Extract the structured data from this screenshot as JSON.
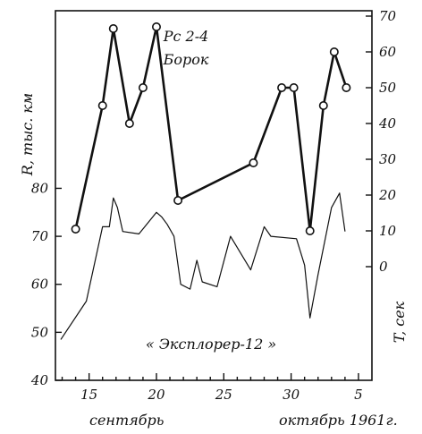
{
  "chart_data": {
    "type": "line",
    "title_lines": [
      "Рс 2-4",
      "Борок"
    ],
    "annotation": "« Эксплорер-12 »",
    "y_left_label": "R, тыс. км",
    "y_right_label": "T, сек",
    "x_caption_left": "сентябрь",
    "x_caption_right": "октябрь 1961г.",
    "x_ticks": [
      {
        "day": 15,
        "label": "15"
      },
      {
        "day": 20,
        "label": "20"
      },
      {
        "day": 25,
        "label": "25"
      },
      {
        "day": 30,
        "label": "30"
      },
      {
        "day": 35,
        "label": "5"
      }
    ],
    "x_range": [
      12.5,
      36
    ],
    "left_axis": {
      "ticks": [
        40,
        50,
        60,
        70,
        80
      ],
      "range": [
        40,
        117
      ]
    },
    "right_axis": {
      "ticks": [
        0,
        10,
        20,
        30,
        40,
        50,
        60,
        70
      ],
      "range": [
        0,
        70
      ]
    },
    "series": [
      {
        "axis": "right",
        "style": "markers",
        "points": [
          {
            "x": 14.0,
            "y": 10.5
          },
          {
            "x": 16.0,
            "y": 45.0
          },
          {
            "x": 16.8,
            "y": 66.5
          },
          {
            "x": 18.0,
            "y": 40.0
          },
          {
            "x": 19.0,
            "y": 50.0
          },
          {
            "x": 20.0,
            "y": 67.0
          },
          {
            "x": 21.6,
            "y": 18.5
          },
          {
            "x": 27.2,
            "y": 29.0
          },
          {
            "x": 29.3,
            "y": 50.0
          },
          {
            "x": 30.2,
            "y": 50.0
          },
          {
            "x": 31.4,
            "y": 10.0
          },
          {
            "x": 32.4,
            "y": 45.0
          },
          {
            "x": 33.2,
            "y": 60.0
          },
          {
            "x": 34.1,
            "y": 50.0
          }
        ]
      },
      {
        "axis": "left",
        "style": "thin",
        "points": [
          {
            "x": 12.9,
            "y": 48.5
          },
          {
            "x": 14.8,
            "y": 56.5
          },
          {
            "x": 16.0,
            "y": 72.0
          },
          {
            "x": 16.5,
            "y": 72.0
          },
          {
            "x": 16.8,
            "y": 78.0
          },
          {
            "x": 17.1,
            "y": 76.0
          },
          {
            "x": 17.5,
            "y": 71.0
          },
          {
            "x": 18.7,
            "y": 70.5
          },
          {
            "x": 20.0,
            "y": 75.0
          },
          {
            "x": 20.4,
            "y": 74.0
          },
          {
            "x": 20.8,
            "y": 72.5
          },
          {
            "x": 21.3,
            "y": 70.0
          },
          {
            "x": 21.8,
            "y": 60.0
          },
          {
            "x": 22.5,
            "y": 59.0
          },
          {
            "x": 23.0,
            "y": 65.0
          },
          {
            "x": 23.4,
            "y": 60.5
          },
          {
            "x": 24.5,
            "y": 59.5
          },
          {
            "x": 25.5,
            "y": 70.0
          },
          {
            "x": 27.0,
            "y": 63.0
          },
          {
            "x": 28.0,
            "y": 72.0
          },
          {
            "x": 28.5,
            "y": 70.0
          },
          {
            "x": 30.4,
            "y": 69.5
          },
          {
            "x": 31.0,
            "y": 64.0
          },
          {
            "x": 31.4,
            "y": 53.0
          },
          {
            "x": 32.0,
            "y": 62.0
          },
          {
            "x": 33.0,
            "y": 76.0
          },
          {
            "x": 33.6,
            "y": 79.0
          },
          {
            "x": 34.0,
            "y": 71.0
          }
        ]
      }
    ]
  }
}
